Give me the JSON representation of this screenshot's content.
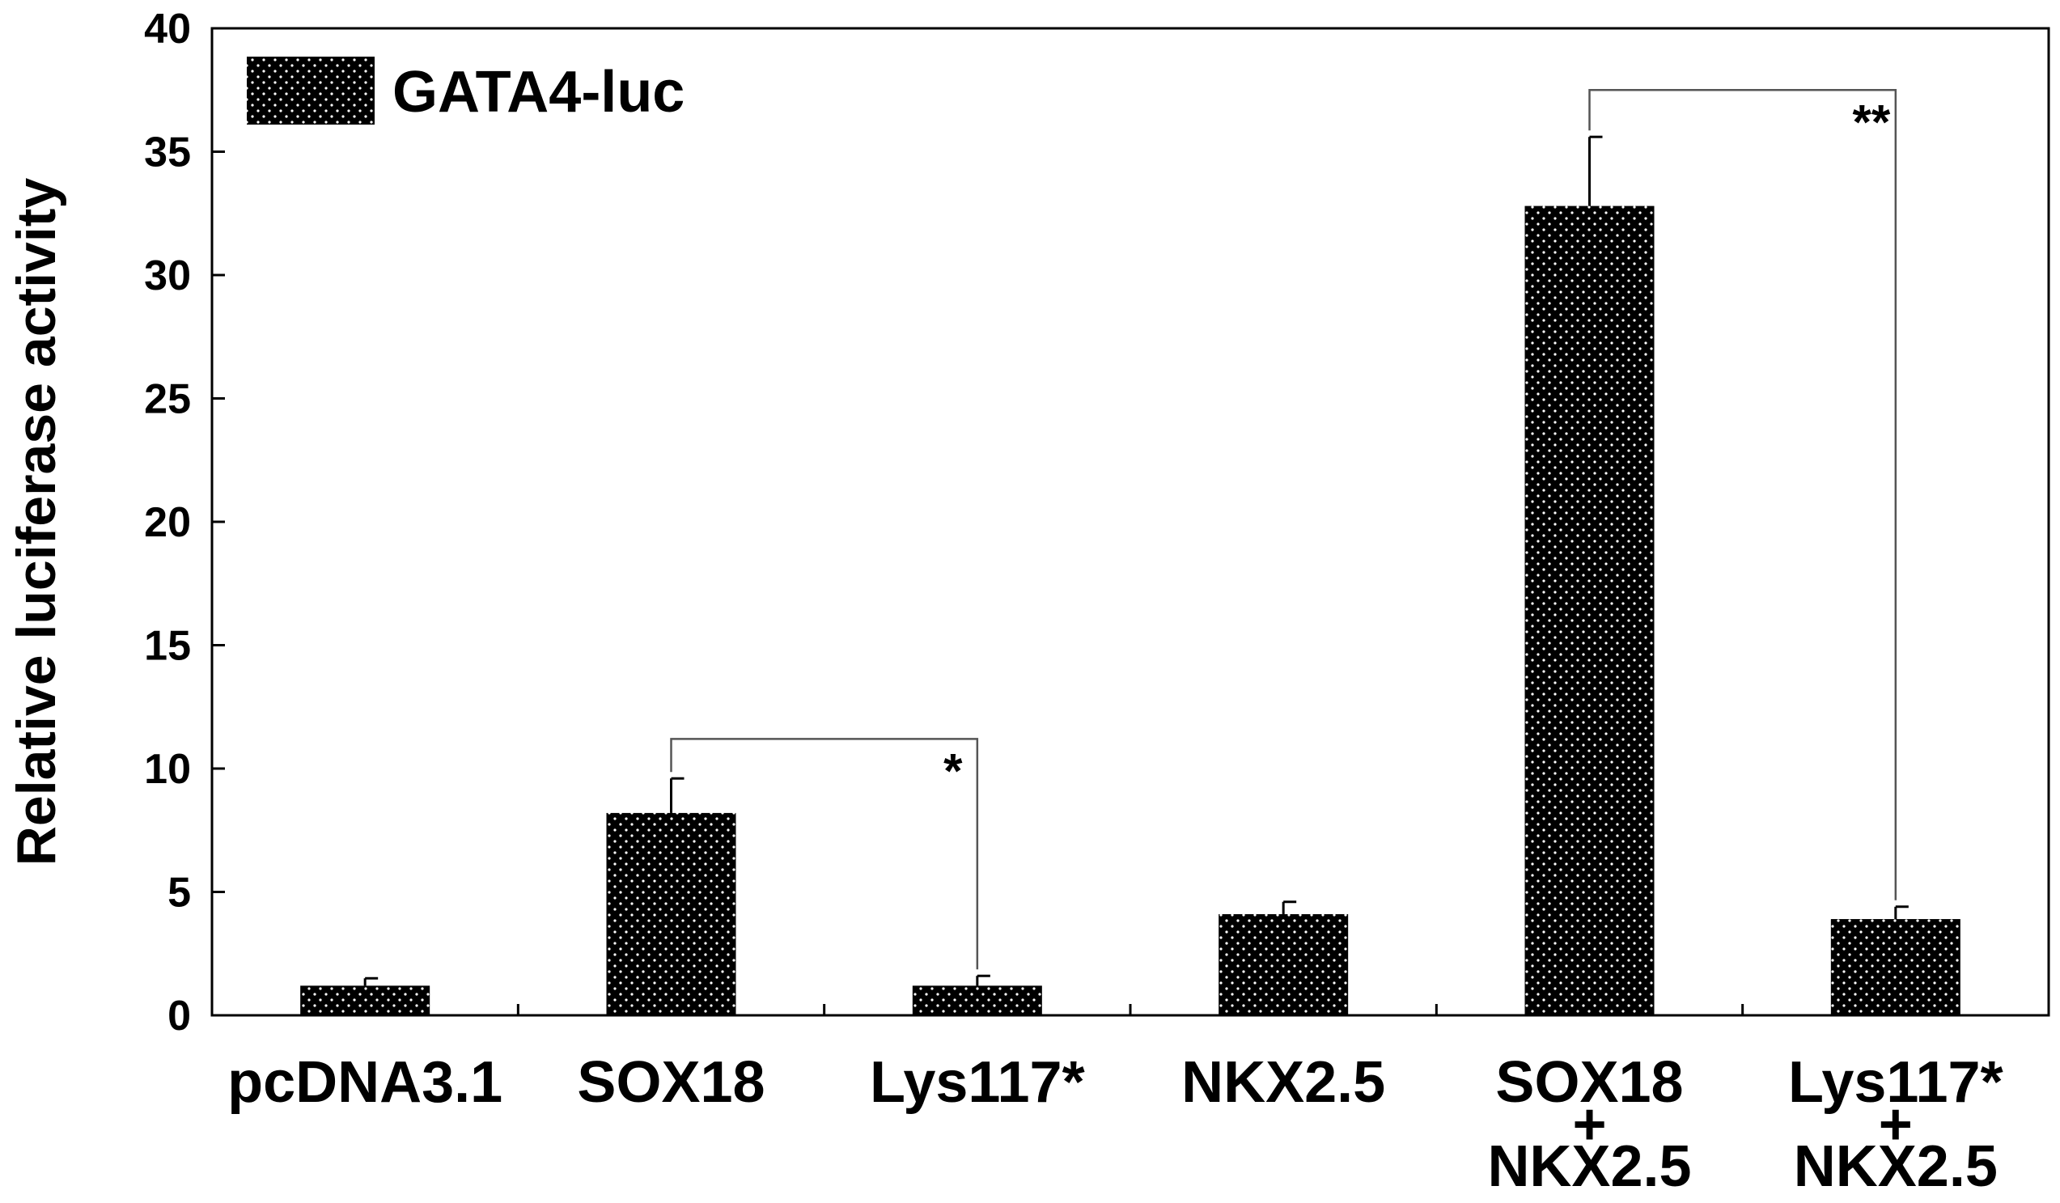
{
  "chart_data": {
    "type": "bar",
    "categories": [
      [
        "pcDNA3.1"
      ],
      [
        "SOX18"
      ],
      [
        "Lys117*"
      ],
      [
        "NKX2.5"
      ],
      [
        "SOX18",
        "+",
        "NKX2.5"
      ],
      [
        "Lys117*",
        "+",
        "NKX2.5"
      ]
    ],
    "series": [
      {
        "name": "GATA4-luc",
        "values": [
          1.2,
          8.2,
          1.2,
          4.1,
          32.8,
          3.9
        ],
        "errors": [
          0.3,
          1.4,
          0.4,
          0.5,
          2.8,
          0.5
        ]
      }
    ],
    "xlabel": "",
    "ylabel": "Relative luciferase activity",
    "ylim": [
      0,
      40
    ],
    "yticks": [
      0,
      5,
      10,
      15,
      20,
      25,
      30,
      35,
      40
    ],
    "legend": {
      "position": "top-left"
    },
    "grid": false,
    "bar_color": "#000000",
    "bar_pattern": "white-dot stipple",
    "significance": [
      {
        "from": 1,
        "to": 2,
        "label": "*",
        "y": 11.2
      },
      {
        "from": 4,
        "to": 5,
        "label": "**",
        "y": 37.5
      }
    ]
  }
}
